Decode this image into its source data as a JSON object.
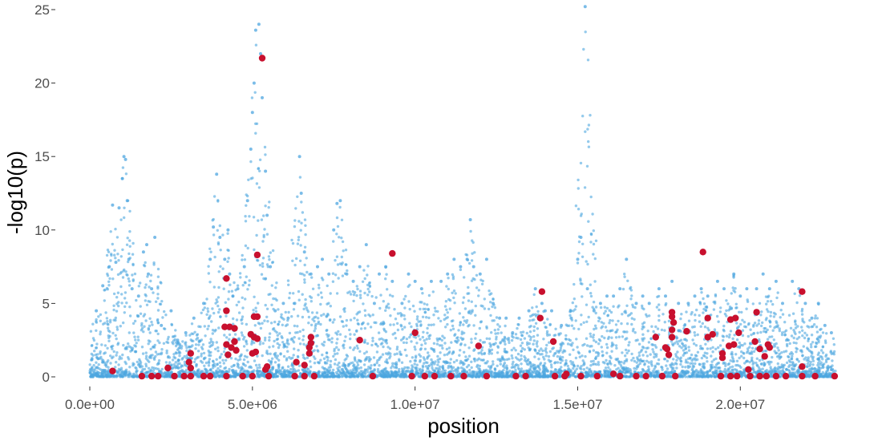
{
  "chart_data": {
    "type": "scatter",
    "title": "",
    "xlabel": "position",
    "ylabel": "-log10(p)",
    "xlim": [
      0,
      23000000
    ],
    "ylim": [
      0,
      25
    ],
    "x_ticks": [
      {
        "value": 0,
        "label": "0.0e+00"
      },
      {
        "value": 5000000,
        "label": "5.0e+06"
      },
      {
        "value": 10000000,
        "label": "1.0e+07"
      },
      {
        "value": 15000000,
        "label": "1.5e+07"
      },
      {
        "value": 20000000,
        "label": "2.0e+07"
      }
    ],
    "y_ticks": [
      {
        "value": 0,
        "label": "0"
      },
      {
        "value": 5,
        "label": "5"
      },
      {
        "value": 10,
        "label": "10"
      },
      {
        "value": 15,
        "label": "15"
      },
      {
        "value": 20,
        "label": "20"
      },
      {
        "value": 25,
        "label": "25"
      }
    ],
    "grid": false,
    "legend": "none",
    "series": [
      {
        "color": "#4da6e0",
        "points": [
          [
            200000,
            4.5
          ],
          [
            400000,
            6.2
          ],
          [
            600000,
            7.5
          ],
          [
            700000,
            11.7
          ],
          [
            800000,
            7.8
          ],
          [
            900000,
            11.5
          ],
          [
            1000000,
            13.5
          ],
          [
            1050000,
            15.0
          ],
          [
            1100000,
            14.8
          ],
          [
            1150000,
            12.0
          ],
          [
            1200000,
            8.0
          ],
          [
            1300000,
            6.0
          ],
          [
            1500000,
            5.5
          ],
          [
            1650000,
            8.5
          ],
          [
            1750000,
            9.0
          ],
          [
            1800000,
            7.0
          ],
          [
            1900000,
            6.0
          ],
          [
            2000000,
            9.5
          ],
          [
            2200000,
            3.5
          ],
          [
            2500000,
            4.5
          ],
          [
            2700000,
            2.5
          ],
          [
            2950000,
            3.0
          ],
          [
            3200000,
            4.0
          ],
          [
            3500000,
            5.0
          ],
          [
            3700000,
            8.0
          ],
          [
            3800000,
            10.2
          ],
          [
            3900000,
            13.8
          ],
          [
            4000000,
            9.5
          ],
          [
            4150000,
            8.0
          ],
          [
            4250000,
            10.0
          ],
          [
            4300000,
            7.0
          ],
          [
            4400000,
            5.5
          ],
          [
            4550000,
            6.0
          ],
          [
            4750000,
            7.5
          ],
          [
            4850000,
            12.0
          ],
          [
            4950000,
            15.5
          ],
          [
            5000000,
            18.0
          ],
          [
            5050000,
            20.0
          ],
          [
            5100000,
            23.6
          ],
          [
            5200000,
            24.0
          ],
          [
            5250000,
            22.0
          ],
          [
            5300000,
            19.0
          ],
          [
            5400000,
            14.0
          ],
          [
            5450000,
            11.0
          ],
          [
            5550000,
            7.5
          ],
          [
            5700000,
            4.5
          ],
          [
            5950000,
            5.0
          ],
          [
            6100000,
            4.0
          ],
          [
            6300000,
            5.0
          ],
          [
            6450000,
            15.0
          ],
          [
            6500000,
            12.5
          ],
          [
            6600000,
            8.5
          ],
          [
            6800000,
            7.0
          ],
          [
            7000000,
            7.5
          ],
          [
            7150000,
            8.0
          ],
          [
            7350000,
            7.0
          ],
          [
            7500000,
            10.0
          ],
          [
            7600000,
            11.8
          ],
          [
            7700000,
            12.0
          ],
          [
            7900000,
            7.0
          ],
          [
            8100000,
            6.5
          ],
          [
            8300000,
            7.5
          ],
          [
            8500000,
            9.0
          ],
          [
            8750000,
            5.0
          ],
          [
            8900000,
            7.0
          ],
          [
            9100000,
            7.5
          ],
          [
            9300000,
            6.5
          ],
          [
            9600000,
            5.0
          ],
          [
            9800000,
            7.0
          ],
          [
            10000000,
            6.5
          ],
          [
            10200000,
            6.0
          ],
          [
            10500000,
            6.5
          ],
          [
            10800000,
            6.5
          ],
          [
            11000000,
            7.0
          ],
          [
            11200000,
            8.0
          ],
          [
            11400000,
            7.5
          ],
          [
            11600000,
            8.0
          ],
          [
            11700000,
            10.7
          ],
          [
            11800000,
            7.5
          ],
          [
            12000000,
            7.0
          ],
          [
            12200000,
            8.0
          ],
          [
            12400000,
            5.0
          ],
          [
            12600000,
            4.0
          ],
          [
            12800000,
            4.0
          ],
          [
            13000000,
            3.0
          ],
          [
            13200000,
            4.0
          ],
          [
            13500000,
            4.5
          ],
          [
            13700000,
            6.0
          ],
          [
            13900000,
            5.0
          ],
          [
            14000000,
            4.5
          ],
          [
            14200000,
            4.5
          ],
          [
            14500000,
            3.5
          ],
          [
            14800000,
            4.0
          ],
          [
            15000000,
            8.0
          ],
          [
            15100000,
            9.5
          ],
          [
            15300000,
            6.0
          ],
          [
            15500000,
            4.5
          ],
          [
            15700000,
            5.0
          ],
          [
            15900000,
            5.5
          ],
          [
            16100000,
            5.5
          ],
          [
            16300000,
            6.0
          ],
          [
            16500000,
            8.0
          ],
          [
            16800000,
            5.0
          ],
          [
            17000000,
            5.5
          ],
          [
            17200000,
            5.0
          ],
          [
            17500000,
            6.0
          ],
          [
            17700000,
            5.5
          ],
          [
            17900000,
            6.5
          ],
          [
            18100000,
            5.0
          ],
          [
            18400000,
            5.0
          ],
          [
            18600000,
            5.5
          ],
          [
            18800000,
            6.0
          ],
          [
            19000000,
            5.5
          ],
          [
            19300000,
            6.5
          ],
          [
            19500000,
            6.0
          ],
          [
            19800000,
            7.0
          ],
          [
            20000000,
            5.5
          ],
          [
            20200000,
            6.0
          ],
          [
            20500000,
            6.0
          ],
          [
            20700000,
            7.0
          ],
          [
            20900000,
            6.0
          ],
          [
            21100000,
            6.5
          ],
          [
            21300000,
            5.0
          ],
          [
            21600000,
            6.5
          ],
          [
            21800000,
            6.0
          ],
          [
            22000000,
            5.0
          ],
          [
            22200000,
            4.0
          ],
          [
            22400000,
            5.0
          ],
          [
            22600000,
            3.5
          ],
          [
            22800000,
            3.0
          ],
          [
            15230000,
            25.2
          ]
        ]
      },
      {
        "color": "#c8102e",
        "points": [
          [
            700000,
            0.4
          ],
          [
            5300000,
            21.7
          ],
          [
            5150000,
            8.3
          ],
          [
            4200000,
            6.7
          ],
          [
            4200000,
            4.5
          ],
          [
            4150000,
            3.4
          ],
          [
            4300000,
            3.4
          ],
          [
            4450000,
            3.3
          ],
          [
            4450000,
            2.4
          ],
          [
            4200000,
            2.2
          ],
          [
            4350000,
            2.0
          ],
          [
            4500000,
            1.8
          ],
          [
            4250000,
            1.5
          ],
          [
            4950000,
            2.9
          ],
          [
            5050000,
            4.1
          ],
          [
            5150000,
            4.1
          ],
          [
            5050000,
            2.7
          ],
          [
            5150000,
            2.6
          ],
          [
            5100000,
            1.7
          ],
          [
            5000000,
            1.6
          ],
          [
            5450000,
            0.7
          ],
          [
            5400000,
            0.5
          ],
          [
            3100000,
            1.6
          ],
          [
            3050000,
            1.0
          ],
          [
            3100000,
            0.6
          ],
          [
            2400000,
            0.6
          ],
          [
            6800000,
            2.7
          ],
          [
            6800000,
            2.3
          ],
          [
            6750000,
            2.0
          ],
          [
            6750000,
            1.6
          ],
          [
            6350000,
            1.0
          ],
          [
            6600000,
            0.8
          ],
          [
            8300000,
            2.5
          ],
          [
            9300000,
            8.4
          ],
          [
            10000000,
            3.0
          ],
          [
            11950000,
            2.1
          ],
          [
            13900000,
            5.8
          ],
          [
            13850000,
            4.0
          ],
          [
            14250000,
            2.4
          ],
          [
            14650000,
            0.2
          ],
          [
            16100000,
            0.2
          ],
          [
            17400000,
            2.7
          ],
          [
            17700000,
            2.0
          ],
          [
            17750000,
            1.9
          ],
          [
            17800000,
            1.5
          ],
          [
            17900000,
            4.4
          ],
          [
            17900000,
            4.1
          ],
          [
            17950000,
            3.7
          ],
          [
            17900000,
            3.2
          ],
          [
            17900000,
            2.7
          ],
          [
            18350000,
            3.1
          ],
          [
            18850000,
            8.5
          ],
          [
            19000000,
            4.0
          ],
          [
            19000000,
            2.7
          ],
          [
            19150000,
            2.9
          ],
          [
            19450000,
            1.6
          ],
          [
            19450000,
            1.3
          ],
          [
            19650000,
            2.1
          ],
          [
            19700000,
            3.9
          ],
          [
            19850000,
            4.0
          ],
          [
            19800000,
            2.2
          ],
          [
            19950000,
            3.0
          ],
          [
            20500000,
            4.4
          ],
          [
            20450000,
            2.4
          ],
          [
            20600000,
            1.9
          ],
          [
            20750000,
            1.4
          ],
          [
            20850000,
            2.2
          ],
          [
            20900000,
            2.0
          ],
          [
            20250000,
            0.5
          ],
          [
            21900000,
            5.8
          ],
          [
            21900000,
            0.7
          ],
          [
            1600000,
            0.05
          ],
          [
            1900000,
            0.05
          ],
          [
            2100000,
            0.05
          ],
          [
            2600000,
            0.05
          ],
          [
            2900000,
            0.05
          ],
          [
            3100000,
            0.05
          ],
          [
            3500000,
            0.05
          ],
          [
            3700000,
            0.05
          ],
          [
            4200000,
            0.05
          ],
          [
            4700000,
            0.05
          ],
          [
            5000000,
            0.05
          ],
          [
            5500000,
            0.05
          ],
          [
            6300000,
            0.05
          ],
          [
            6600000,
            0.05
          ],
          [
            6900000,
            0.05
          ],
          [
            8700000,
            0.05
          ],
          [
            9900000,
            0.05
          ],
          [
            10300000,
            0.05
          ],
          [
            10600000,
            0.05
          ],
          [
            11100000,
            0.05
          ],
          [
            11500000,
            0.05
          ],
          [
            12200000,
            0.05
          ],
          [
            13100000,
            0.05
          ],
          [
            13400000,
            0.05
          ],
          [
            14300000,
            0.05
          ],
          [
            14600000,
            0.05
          ],
          [
            15100000,
            0.05
          ],
          [
            15600000,
            0.05
          ],
          [
            16300000,
            0.05
          ],
          [
            16800000,
            0.05
          ],
          [
            17100000,
            0.05
          ],
          [
            17600000,
            0.05
          ],
          [
            18000000,
            0.05
          ],
          [
            19400000,
            0.05
          ],
          [
            19700000,
            0.05
          ],
          [
            19900000,
            0.05
          ],
          [
            20300000,
            0.05
          ],
          [
            20600000,
            0.05
          ],
          [
            20800000,
            0.05
          ],
          [
            21100000,
            0.05
          ],
          [
            21400000,
            0.05
          ],
          [
            21900000,
            0.05
          ],
          [
            22300000,
            0.05
          ],
          [
            22900000,
            0.05
          ]
        ]
      }
    ]
  }
}
